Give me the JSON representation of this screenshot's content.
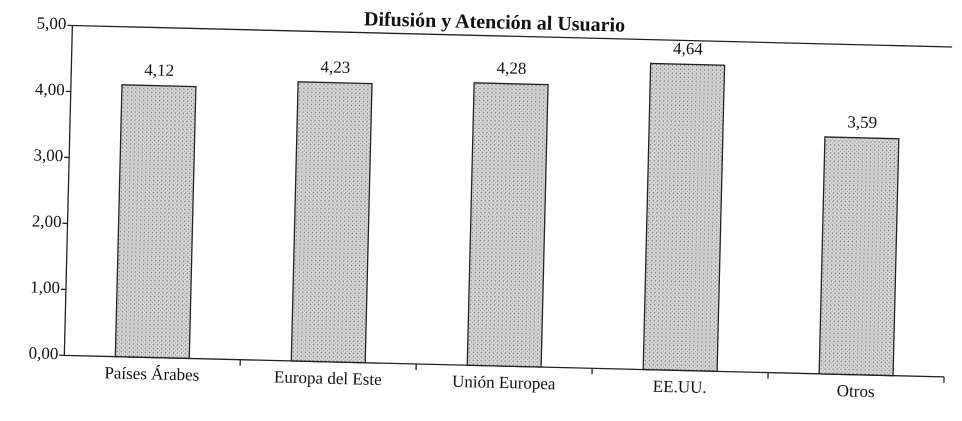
{
  "chart_data": {
    "type": "bar",
    "title": "Difusión y Atención al Usuario",
    "categories": [
      "Países Árabes",
      "Europa del Este",
      "Unión Europea",
      "EE.UU.",
      "Otros"
    ],
    "values": [
      4.12,
      4.23,
      4.28,
      4.64,
      3.59
    ],
    "value_labels": [
      "4,12",
      "4,23",
      "4,28",
      "4,64",
      "3,59"
    ],
    "color": "#c4c4c4",
    "ylim": [
      0,
      5
    ],
    "yticks": [
      {
        "value": 0,
        "label": "0,00"
      },
      {
        "value": 1,
        "label": "1,00"
      },
      {
        "value": 2,
        "label": "2,00"
      },
      {
        "value": 3,
        "label": "3,00"
      },
      {
        "value": 4,
        "label": "4,00"
      },
      {
        "value": 5,
        "label": "5,00"
      }
    ],
    "grid": false
  }
}
